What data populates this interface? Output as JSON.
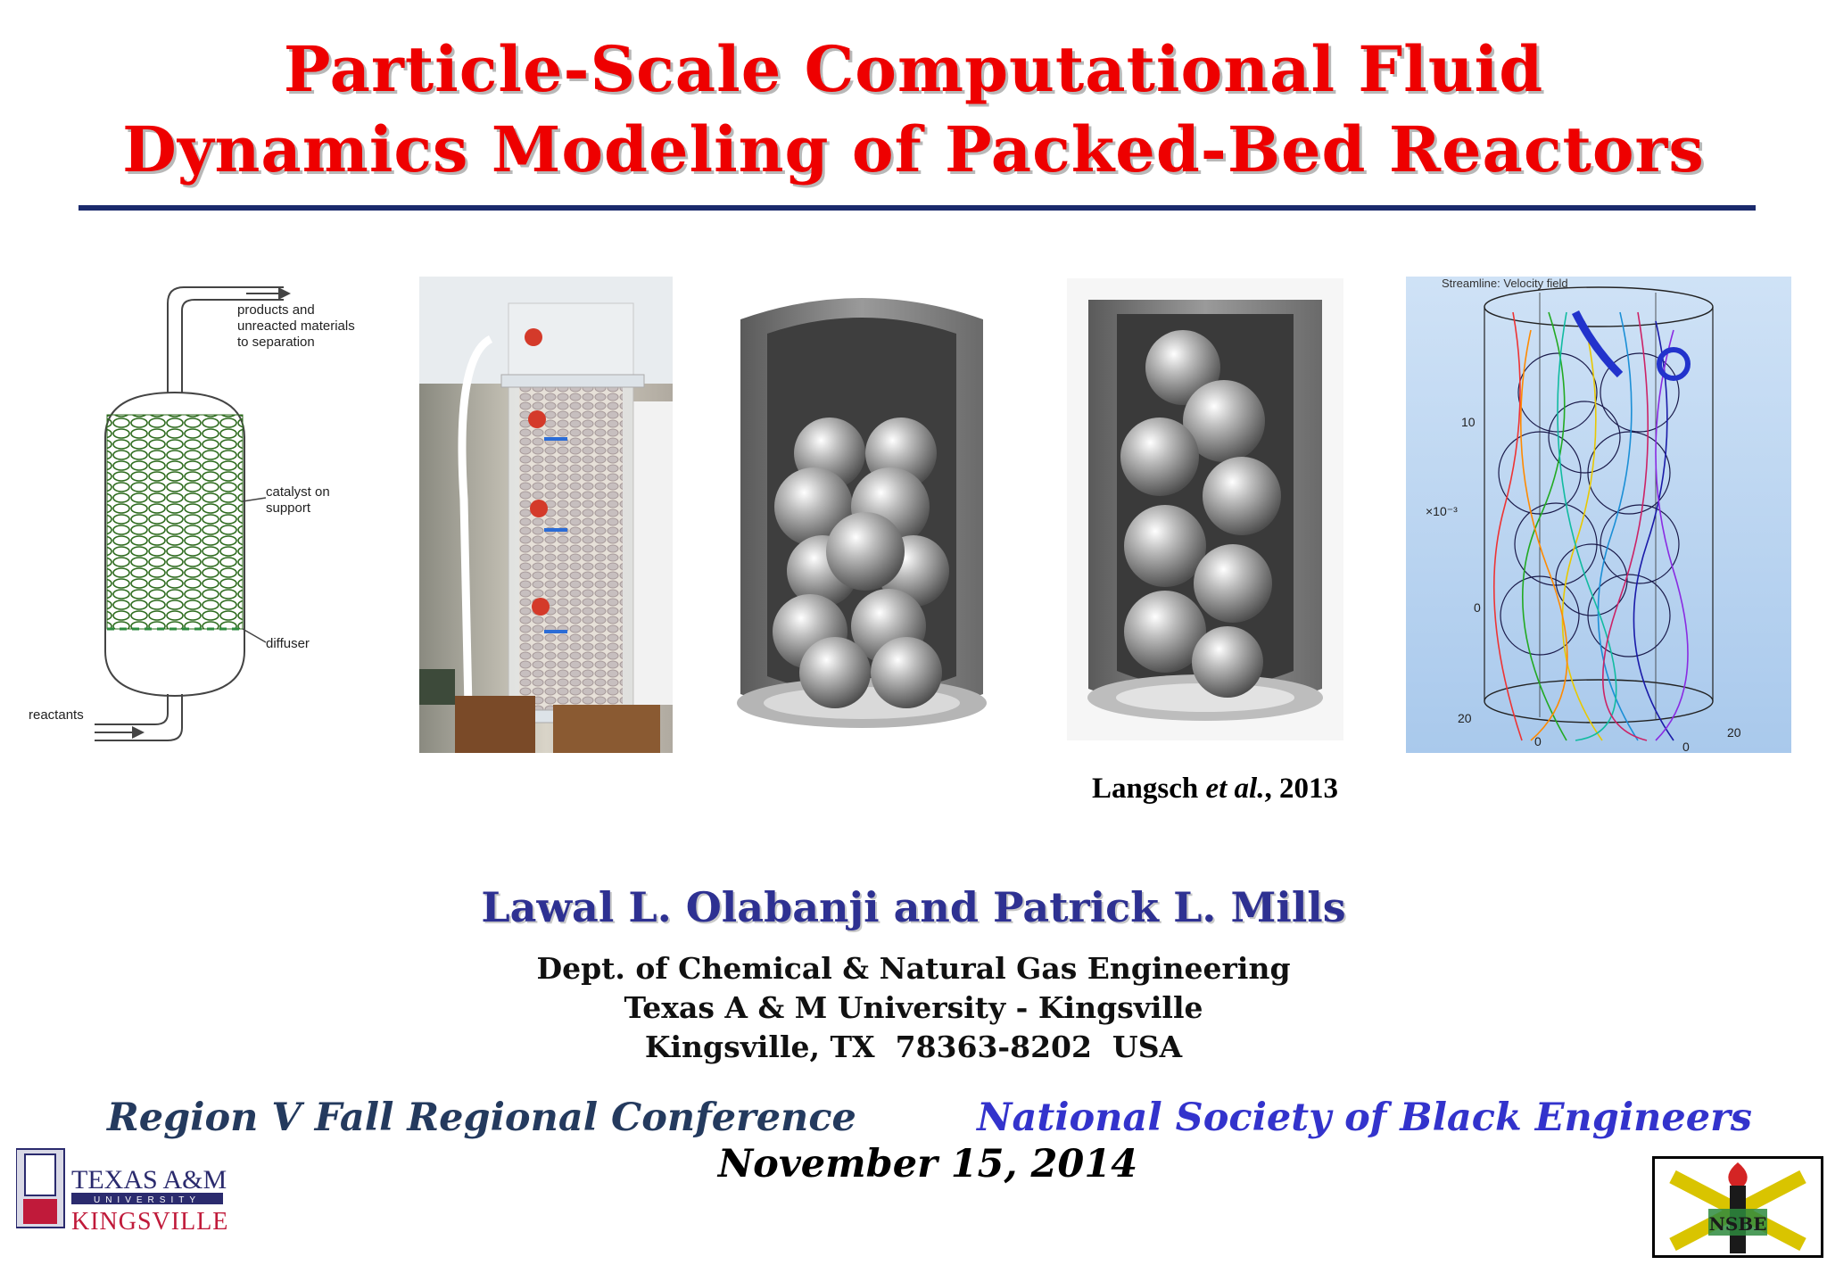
{
  "title": {
    "line1": "Particle-Scale Computational Fluid",
    "line2": "Dynamics Modeling of Packed-Bed Reactors"
  },
  "figures": {
    "reactor_diagram": {
      "label_products": [
        "products and",
        "unreacted materials",
        "to separation"
      ],
      "label_catalyst": [
        "catalyst on",
        "support"
      ],
      "label_diffuser": "diffuser",
      "label_reactants": "reactants"
    },
    "streamline_plot": {
      "title": "Streamline: Velocity field",
      "tick_10": "10",
      "tick_exp": "×10⁻³",
      "tick_0": "0",
      "tick_20_left": "20",
      "tick_0_bottom": "0",
      "tick_20_right": "20",
      "tick_0_right": "0"
    }
  },
  "citation": {
    "author": "Langsch",
    "etal": "et al.",
    "year": ", 2013"
  },
  "authors": "Lawal L. Olabanji and Patrick L. Mills",
  "affiliation": {
    "dept": "Dept. of Chemical & Natural Gas Engineering",
    "university": "Texas A & M University - Kingsville",
    "address": "Kingsville, TX  78363-8202  USA"
  },
  "conference": {
    "left": "Region V Fall Regional Conference",
    "right": "National Society of Black Engineers",
    "date": "November 15, 2014"
  },
  "logos": {
    "tamuk_line1": "TEXAS A&M",
    "tamuk_line2": "UNIVERSITY",
    "tamuk_line3": "KINGSVILLE",
    "nsbe_text": "NSBE"
  },
  "colors": {
    "title": "#ee0000",
    "rule": "#1a2a6c",
    "authors": "#2e3192",
    "conf_left": "#243a5e",
    "conf_right": "#3333cc"
  }
}
